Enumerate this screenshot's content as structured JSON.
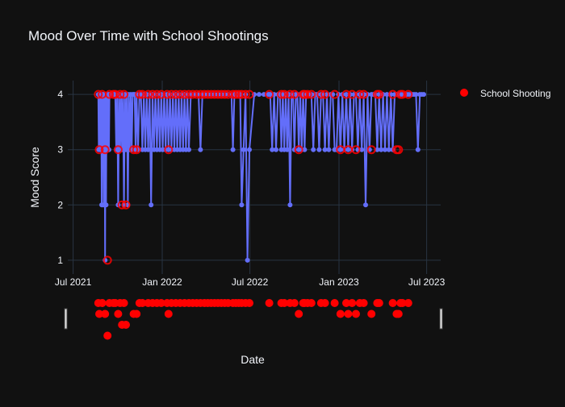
{
  "chart_data": {
    "type": "line",
    "title": "Mood Over Time with School Shootings",
    "xlabel": "Date",
    "ylabel": "Mood Score",
    "x_axis": {
      "type": "date",
      "range": [
        "2021-06-20",
        "2023-07-30"
      ],
      "tick_values": [
        "2021-07-01",
        "2022-01-01",
        "2022-07-01",
        "2023-01-01",
        "2023-07-01"
      ],
      "tick_labels": [
        "Jul 2021",
        "Jan 2022",
        "Jul 2022",
        "Jan 2023",
        "Jul 2023"
      ]
    },
    "y_axis": {
      "range": [
        0.75,
        4.25
      ],
      "tick_values": [
        1,
        2,
        3,
        4
      ],
      "tick_labels": [
        "1",
        "2",
        "3",
        "4"
      ]
    },
    "grid": true,
    "rangeslider": true,
    "legend": {
      "position": "top-right",
      "entries": [
        "School Shooting"
      ]
    },
    "colors": {
      "background": "#111111",
      "grid": "#283442",
      "mood_line": "#636efa",
      "shooting": "#ff0000",
      "text": "#f2f5fa"
    },
    "series": [
      {
        "kind": "line-markers",
        "color": "#636efa",
        "x": [
          "2021-08-22",
          "2021-08-23",
          "2021-08-24",
          "2021-08-25",
          "2021-08-26",
          "2021-08-27",
          "2021-08-28",
          "2021-08-29",
          "2021-08-30",
          "2021-08-31",
          "2021-09-01",
          "2021-09-02",
          "2021-09-03",
          "2021-09-04",
          "2021-09-05",
          "2021-09-06",
          "2021-09-07",
          "2021-09-08",
          "2021-09-09",
          "2021-09-10",
          "2021-09-11",
          "2021-09-12",
          "2021-09-13",
          "2021-09-14",
          "2021-09-15",
          "2021-09-16",
          "2021-09-18",
          "2021-09-20",
          "2021-09-22",
          "2021-09-24",
          "2021-09-26",
          "2021-09-28",
          "2021-09-30",
          "2021-10-02",
          "2021-10-04",
          "2021-10-06",
          "2021-10-08",
          "2021-10-10",
          "2021-10-12",
          "2021-10-14",
          "2021-10-16",
          "2021-10-18",
          "2021-10-20",
          "2021-10-22",
          "2021-10-24",
          "2021-10-26",
          "2021-10-28",
          "2021-10-30",
          "2021-11-01",
          "2021-11-03",
          "2021-11-05",
          "2021-11-07",
          "2021-11-09",
          "2021-11-12",
          "2021-11-15",
          "2021-11-18",
          "2021-11-21",
          "2021-11-24",
          "2021-11-27",
          "2021-11-30",
          "2021-12-03",
          "2021-12-06",
          "2021-12-09",
          "2021-12-12",
          "2021-12-15",
          "2021-12-18",
          "2021-12-21",
          "2021-12-24",
          "2021-12-27",
          "2021-12-30",
          "2022-01-02",
          "2022-01-05",
          "2022-01-08",
          "2022-01-11",
          "2022-01-14",
          "2022-01-17",
          "2022-01-20",
          "2022-01-23",
          "2022-01-26",
          "2022-01-29",
          "2022-02-01",
          "2022-02-04",
          "2022-02-07",
          "2022-02-10",
          "2022-02-13",
          "2022-02-16",
          "2022-02-19",
          "2022-02-22",
          "2022-02-25",
          "2022-03-01",
          "2022-03-05",
          "2022-03-09",
          "2022-03-13",
          "2022-03-17",
          "2022-03-21",
          "2022-03-25",
          "2022-03-29",
          "2022-04-05",
          "2022-04-12",
          "2022-04-19",
          "2022-04-26",
          "2022-05-03",
          "2022-05-10",
          "2022-05-17",
          "2022-05-24",
          "2022-05-27",
          "2022-05-30",
          "2022-06-02",
          "2022-06-05",
          "2022-06-08",
          "2022-06-11",
          "2022-06-14",
          "2022-06-18",
          "2022-06-22",
          "2022-06-26",
          "2022-06-30",
          "2022-07-10",
          "2022-07-20",
          "2022-07-30",
          "2022-08-08",
          "2022-08-10",
          "2022-08-12",
          "2022-08-16",
          "2022-08-20",
          "2022-08-24",
          "2022-08-28",
          "2022-09-01",
          "2022-09-04",
          "2022-09-07",
          "2022-09-10",
          "2022-09-13",
          "2022-09-16",
          "2022-09-19",
          "2022-09-22",
          "2022-09-25",
          "2022-09-28",
          "2022-10-01",
          "2022-10-04",
          "2022-10-07",
          "2022-10-10",
          "2022-10-13",
          "2022-10-16",
          "2022-10-19",
          "2022-10-22",
          "2022-10-25",
          "2022-10-28",
          "2022-11-01",
          "2022-11-05",
          "2022-11-09",
          "2022-11-13",
          "2022-11-17",
          "2022-11-21",
          "2022-11-25",
          "2022-11-29",
          "2022-12-03",
          "2022-12-07",
          "2022-12-11",
          "2022-12-15",
          "2022-12-19",
          "2022-12-23",
          "2022-12-27",
          "2022-12-31",
          "2023-01-04",
          "2023-01-08",
          "2023-01-12",
          "2023-01-16",
          "2023-01-20",
          "2023-01-24",
          "2023-01-28",
          "2023-02-01",
          "2023-02-05",
          "2023-02-09",
          "2023-02-13",
          "2023-02-17",
          "2023-02-21",
          "2023-02-25",
          "2023-03-01",
          "2023-03-05",
          "2023-03-09",
          "2023-03-13",
          "2023-03-17",
          "2023-03-21",
          "2023-03-25",
          "2023-03-29",
          "2023-04-02",
          "2023-04-06",
          "2023-04-10",
          "2023-04-14",
          "2023-04-18",
          "2023-04-22",
          "2023-04-26",
          "2023-04-30",
          "2023-05-04",
          "2023-05-08",
          "2023-05-12",
          "2023-05-16",
          "2023-05-20",
          "2023-05-24",
          "2023-05-28",
          "2023-06-01",
          "2023-06-05",
          "2023-06-09",
          "2023-06-13",
          "2023-06-17",
          "2023-06-21",
          "2023-06-25"
        ],
        "y": [
          4,
          3,
          4,
          3,
          4,
          3,
          4,
          2,
          4,
          3,
          4,
          2,
          3,
          4,
          1,
          4,
          2,
          4,
          3,
          4,
          3,
          4,
          3,
          4,
          4,
          4,
          4,
          4,
          4,
          4,
          4,
          3,
          4,
          2,
          4,
          3,
          4,
          3,
          4,
          2,
          4,
          3,
          4,
          2,
          4,
          3,
          4,
          3,
          4,
          4,
          4,
          3,
          4,
          3,
          4,
          4,
          3,
          4,
          3,
          4,
          3,
          4,
          2,
          4,
          3,
          4,
          3,
          4,
          3,
          4,
          3,
          4,
          3,
          4,
          3,
          4,
          3,
          4,
          3,
          4,
          3,
          4,
          3,
          4,
          3,
          4,
          3,
          4,
          3,
          4,
          4,
          4,
          4,
          4,
          3,
          4,
          4,
          4,
          4,
          4,
          4,
          4,
          4,
          4,
          4,
          3,
          4,
          4,
          4,
          4,
          4,
          2,
          3,
          4,
          1,
          3,
          4,
          4,
          4,
          4,
          4,
          4,
          3,
          4,
          3,
          4,
          4,
          3,
          4,
          3,
          4,
          3,
          4,
          2,
          4,
          4,
          3,
          4,
          4,
          3,
          4,
          3,
          4,
          3,
          4,
          4,
          4,
          4,
          3,
          4,
          4,
          3,
          4,
          4,
          3,
          4,
          3,
          4,
          4,
          3,
          3,
          4,
          3,
          4,
          3,
          4,
          3,
          4,
          3,
          4,
          4,
          3,
          4,
          3,
          4,
          2,
          4,
          3,
          4,
          4,
          4,
          3,
          4,
          3,
          4,
          3,
          4,
          3,
          4,
          3,
          4,
          4,
          4,
          4,
          4,
          4,
          4,
          4,
          4,
          4,
          4,
          4,
          3,
          4,
          4,
          4
        ]
      },
      {
        "kind": "markers",
        "name": "School Shooting",
        "color": "#ff0000",
        "x": [
          "2021-08-22",
          "2021-08-24",
          "2021-08-30",
          "2021-09-05",
          "2021-09-10",
          "2021-09-14",
          "2021-09-22",
          "2021-09-26",
          "2021-10-02",
          "2021-10-06",
          "2021-10-10",
          "2021-10-14",
          "2021-10-18",
          "2021-11-03",
          "2021-11-09",
          "2021-11-15",
          "2021-11-21",
          "2021-12-03",
          "2021-12-12",
          "2021-12-21",
          "2021-12-30",
          "2022-01-11",
          "2022-01-14",
          "2022-01-20",
          "2022-01-29",
          "2022-02-07",
          "2022-02-16",
          "2022-02-25",
          "2022-03-05",
          "2022-03-13",
          "2022-03-21",
          "2022-03-29",
          "2022-04-05",
          "2022-04-12",
          "2022-04-19",
          "2022-04-26",
          "2022-05-03",
          "2022-05-10",
          "2022-05-17",
          "2022-05-27",
          "2022-06-02",
          "2022-06-08",
          "2022-06-14",
          "2022-06-22",
          "2022-06-30",
          "2022-08-10",
          "2022-09-04",
          "2022-09-10",
          "2022-09-22",
          "2022-10-01",
          "2022-10-10",
          "2022-10-19",
          "2022-10-22",
          "2022-10-28",
          "2022-11-05",
          "2022-11-25",
          "2022-12-03",
          "2022-12-23",
          "2023-01-04",
          "2023-01-16",
          "2023-01-20",
          "2023-01-28",
          "2023-02-05",
          "2023-02-13",
          "2023-02-21",
          "2023-03-09",
          "2023-03-21",
          "2023-03-25",
          "2023-04-22",
          "2023-04-30",
          "2023-05-04",
          "2023-05-08",
          "2023-05-12",
          "2023-05-24"
        ],
        "y": [
          4,
          3,
          4,
          3,
          1,
          4,
          4,
          4,
          3,
          4,
          2,
          4,
          2,
          3,
          3,
          4,
          4,
          4,
          4,
          4,
          4,
          4,
          3,
          4,
          4,
          4,
          4,
          4,
          4,
          4,
          4,
          4,
          4,
          4,
          4,
          4,
          4,
          4,
          4,
          4,
          4,
          4,
          4,
          4,
          4,
          4,
          4,
          4,
          4,
          4,
          3,
          4,
          4,
          4,
          4,
          4,
          4,
          4,
          3,
          4,
          3,
          4,
          3,
          4,
          4,
          3,
          4,
          4,
          4,
          3,
          3,
          4,
          4,
          4
        ]
      }
    ]
  }
}
